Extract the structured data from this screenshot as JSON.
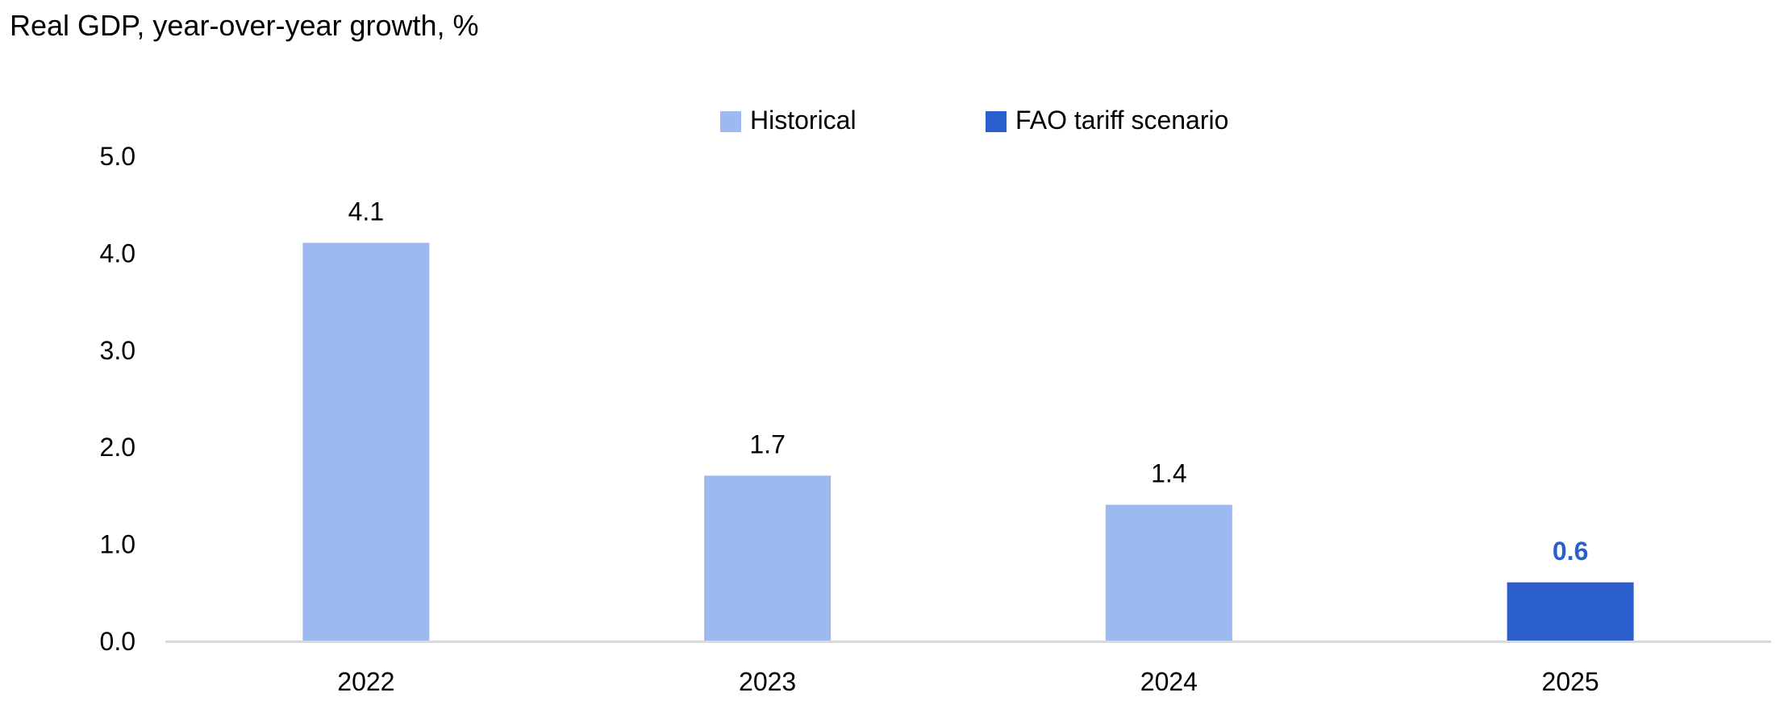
{
  "chart_data": {
    "type": "bar",
    "title": "Real GDP, year-over-year growth, %",
    "xlabel": "",
    "ylabel": "",
    "categories": [
      "2022",
      "2023",
      "2024",
      "2025"
    ],
    "values": [
      4.1,
      1.7,
      1.4,
      0.6
    ],
    "data_labels": [
      "4.1",
      "1.7",
      "1.4",
      "0.6"
    ],
    "series_of_point": [
      "Historical",
      "Historical",
      "Historical",
      "FAO tariff scenario"
    ],
    "series": [
      {
        "name": "Historical",
        "color": "#9dbaf0"
      },
      {
        "name": "FAO tariff scenario",
        "color": "#2b5fcc"
      }
    ],
    "ylim": [
      0,
      5
    ],
    "yticks": [
      0,
      1,
      2,
      3,
      4,
      5
    ],
    "ytick_labels": [
      "0.0",
      "1.0",
      "2.0",
      "3.0",
      "4.0",
      "5.0"
    ],
    "grid": false,
    "legend_position": "top-center",
    "highlight_label_color": "#2b5fcc"
  }
}
